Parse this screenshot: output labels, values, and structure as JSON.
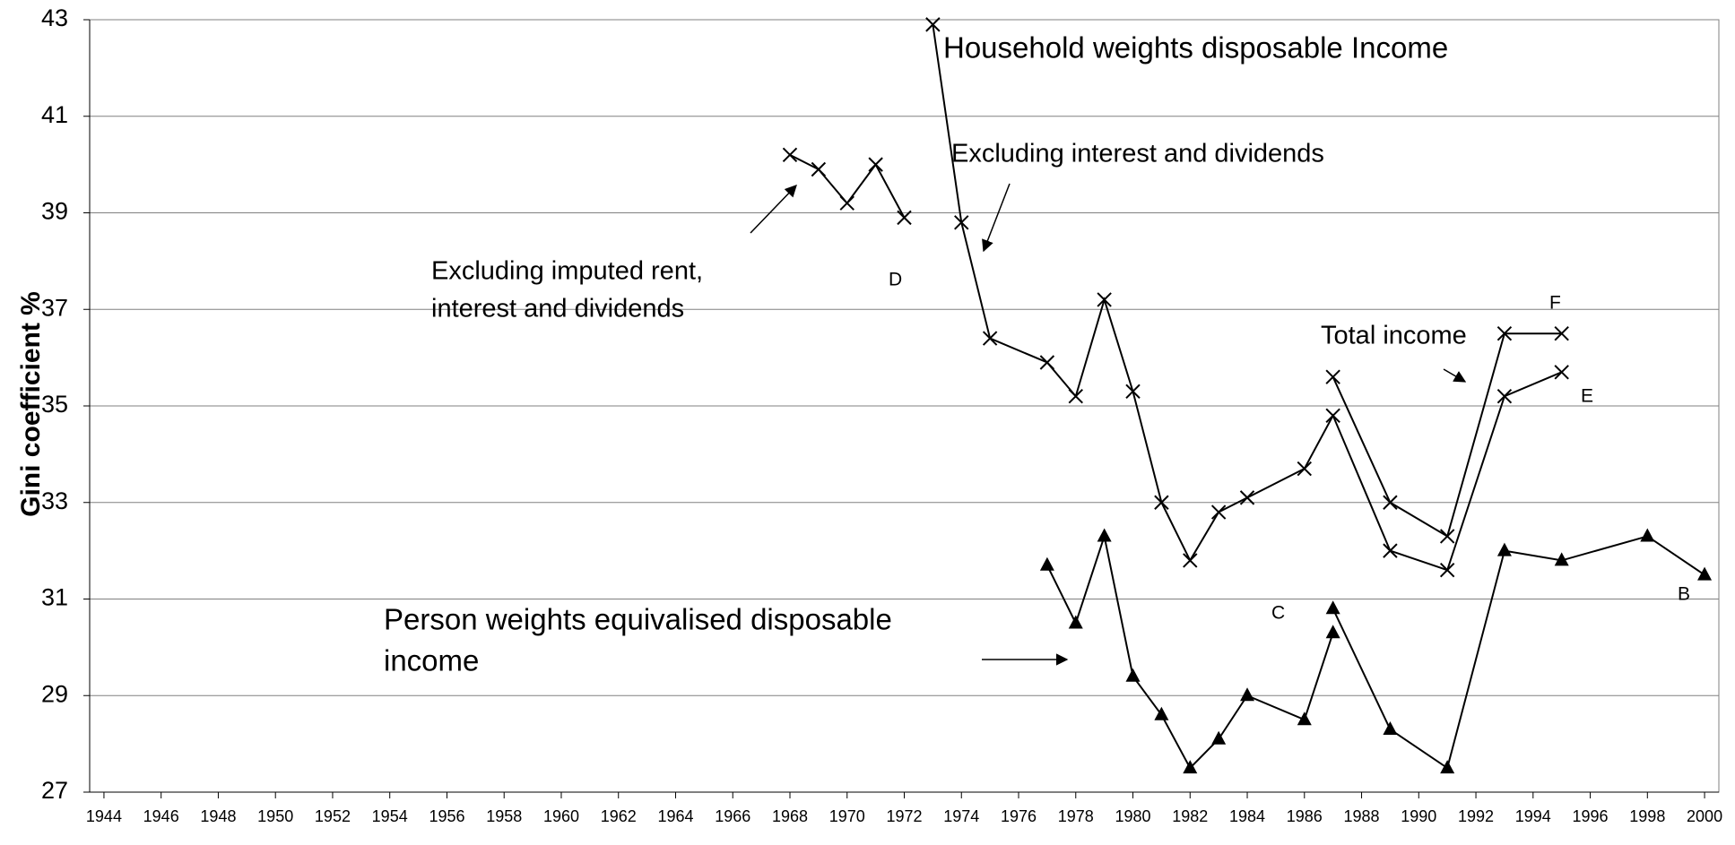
{
  "chart_data": {
    "type": "line",
    "y_label": "Gini coefficient %",
    "annotations": [
      "Household weights disposable Income",
      "Excluding interest and dividends",
      "Excluding imputed rent,",
      "interest and dividends",
      "Total income",
      "Person weights equivalised disposable",
      "income"
    ],
    "xlim": [
      1943.5,
      2000.5
    ],
    "ylim": [
      27,
      43
    ],
    "xticks": [
      1944,
      1946,
      1948,
      1950,
      1952,
      1954,
      1956,
      1958,
      1960,
      1962,
      1964,
      1966,
      1968,
      1970,
      1972,
      1974,
      1976,
      1978,
      1980,
      1982,
      1984,
      1986,
      1988,
      1990,
      1992,
      1994,
      1996,
      1998,
      2000
    ],
    "yticks": [
      27,
      29,
      31,
      33,
      35,
      37,
      39,
      41,
      43
    ],
    "grid": true,
    "series": [
      {
        "name": "D",
        "color": "#000000",
        "marker": "x",
        "x": [
          1968,
          1969,
          1970,
          1971,
          1972
        ],
        "values": [
          40.2,
          39.9,
          39.2,
          40.0,
          38.9
        ]
      },
      {
        "name": "E",
        "color": "#000000",
        "marker": "x",
        "x": [
          1973,
          1974,
          1975,
          1977,
          1978,
          1979,
          1980,
          1981,
          1982,
          1983,
          1984,
          1986,
          1987,
          1989,
          1991,
          1993,
          1995
        ],
        "values": [
          42.9,
          38.8,
          36.4,
          35.9,
          35.2,
          37.2,
          35.3,
          33.0,
          31.8,
          32.8,
          33.1,
          33.7,
          34.8,
          32.0,
          31.6,
          35.2,
          35.7
        ]
      },
      {
        "name": "F",
        "color": "#000000",
        "marker": "x",
        "x": [
          1987,
          1989,
          1991,
          1993,
          1995
        ],
        "values": [
          35.6,
          33.0,
          32.3,
          36.5,
          36.5
        ]
      },
      {
        "name": "C",
        "color": "#000000",
        "marker": "triangle",
        "x": [
          1977,
          1978,
          1979,
          1980,
          1981,
          1982,
          1983,
          1984,
          1986,
          1987
        ],
        "values": [
          31.7,
          30.5,
          32.3,
          29.4,
          28.6,
          27.5,
          28.1,
          29.0,
          28.5,
          30.3
        ]
      },
      {
        "name": "B",
        "color": "#000000",
        "marker": "triangle",
        "x": [
          1987,
          1989,
          1991,
          1993,
          1995,
          1998,
          2000
        ],
        "values": [
          30.8,
          28.3,
          27.5,
          32.0,
          31.8,
          32.3,
          31.5
        ]
      }
    ]
  }
}
